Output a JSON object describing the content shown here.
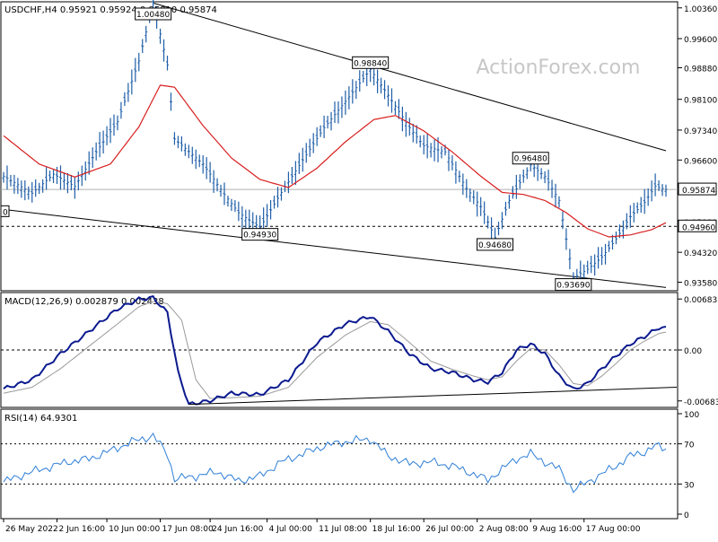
{
  "watermark": "ActionForex.com",
  "colors": {
    "price": "#1f5fa8",
    "ma": "#d81e1e",
    "macd": "#0b1a8f",
    "signal": "#9a9a9a",
    "rsi": "#2f7fd8",
    "trendline": "#000000",
    "frame": "#000000",
    "watermark": "#c7c7c7"
  },
  "chart_data": [
    {
      "type": "line",
      "panel": "price",
      "title": "USDCHF,H4  0.95921 0.95924 0.95810 0.95874",
      "y_ticks": [
        "1.00360",
        "0.99600",
        "0.98880",
        "0.98100",
        "0.97340",
        "0.96600",
        "0.95840",
        "0.95080",
        "0.94320",
        "0.93580"
      ],
      "ylim": [
        0.9337,
        1.0051
      ],
      "current_price": "0.95874",
      "support_level": "0.94960",
      "left_label": "0",
      "annotations": [
        {
          "label": "1.00480",
          "bar": 42,
          "value": 1.0048
        },
        {
          "label": "0.98840",
          "bar": 103,
          "value": 0.9884
        },
        {
          "label": "0.94930",
          "bar": 72,
          "value": 0.9493
        },
        {
          "label": "0.96480",
          "bar": 148,
          "value": 0.9648
        },
        {
          "label": "0.94680",
          "bar": 138,
          "value": 0.9468
        },
        {
          "label": "0.93690",
          "bar": 160,
          "value": 0.9369
        }
      ],
      "trendlines": [
        {
          "from": [
            42,
            1.0048
          ],
          "to": [
            186,
            0.9683
          ]
        },
        {
          "from": [
            0,
            0.9538
          ],
          "to": [
            186,
            0.9345
          ]
        }
      ],
      "bars_count": 187,
      "price_anchors": [
        [
          0,
          0.962
        ],
        [
          8,
          0.9578
        ],
        [
          14,
          0.9625
        ],
        [
          20,
          0.9595
        ],
        [
          26,
          0.968
        ],
        [
          32,
          0.9755
        ],
        [
          38,
          0.9905
        ],
        [
          42,
          1.0048
        ],
        [
          46,
          0.9895
        ],
        [
          48,
          0.9712
        ],
        [
          56,
          0.965
        ],
        [
          62,
          0.9575
        ],
        [
          66,
          0.953
        ],
        [
          72,
          0.9493
        ],
        [
          78,
          0.958
        ],
        [
          84,
          0.966
        ],
        [
          90,
          0.974
        ],
        [
          96,
          0.9805
        ],
        [
          103,
          0.9884
        ],
        [
          108,
          0.982
        ],
        [
          114,
          0.974
        ],
        [
          118,
          0.9695
        ],
        [
          124,
          0.968
        ],
        [
          130,
          0.959
        ],
        [
          134,
          0.9545
        ],
        [
          138,
          0.9468
        ],
        [
          142,
          0.956
        ],
        [
          148,
          0.9648
        ],
        [
          152,
          0.962
        ],
        [
          156,
          0.956
        ],
        [
          160,
          0.9369
        ],
        [
          164,
          0.939
        ],
        [
          168,
          0.942
        ],
        [
          172,
          0.9465
        ],
        [
          176,
          0.952
        ],
        [
          180,
          0.9555
        ],
        [
          183,
          0.9595
        ],
        [
          186,
          0.9587
        ]
      ],
      "ma_anchors": [
        [
          0,
          0.972
        ],
        [
          10,
          0.965
        ],
        [
          20,
          0.9618
        ],
        [
          30,
          0.965
        ],
        [
          38,
          0.9742
        ],
        [
          44,
          0.9845
        ],
        [
          48,
          0.984
        ],
        [
          56,
          0.9745
        ],
        [
          64,
          0.9665
        ],
        [
          72,
          0.9612
        ],
        [
          80,
          0.9592
        ],
        [
          88,
          0.964
        ],
        [
          96,
          0.9705
        ],
        [
          104,
          0.976
        ],
        [
          110,
          0.977
        ],
        [
          118,
          0.9732
        ],
        [
          126,
          0.968
        ],
        [
          134,
          0.962
        ],
        [
          140,
          0.958
        ],
        [
          146,
          0.9575
        ],
        [
          152,
          0.956
        ],
        [
          158,
          0.953
        ],
        [
          164,
          0.949
        ],
        [
          170,
          0.947
        ],
        [
          176,
          0.9475
        ],
        [
          182,
          0.9488
        ],
        [
          186,
          0.9505
        ]
      ]
    },
    {
      "type": "line",
      "panel": "macd",
      "title": "MACD(12,26,9) 0.002879 0.002438",
      "y_ticks": [
        "0.006832",
        "0.00",
        "-0.00683"
      ],
      "ylim": [
        -0.0077,
        0.0077
      ],
      "series_values": {
        "macd_anchors": [
          [
            0,
            -0.0052
          ],
          [
            8,
            -0.004
          ],
          [
            16,
            -0.0005
          ],
          [
            24,
            0.0025
          ],
          [
            32,
            0.0055
          ],
          [
            38,
            0.0068
          ],
          [
            42,
            0.007
          ],
          [
            46,
            0.005
          ],
          [
            49,
            -0.003
          ],
          [
            52,
            -0.0073
          ],
          [
            58,
            -0.0068
          ],
          [
            64,
            -0.0058
          ],
          [
            72,
            -0.006
          ],
          [
            80,
            -0.004
          ],
          [
            88,
            0.001
          ],
          [
            96,
            0.0035
          ],
          [
            103,
            0.0045
          ],
          [
            108,
            0.0025
          ],
          [
            114,
            -0.0005
          ],
          [
            120,
            -0.0025
          ],
          [
            126,
            -0.003
          ],
          [
            132,
            -0.004
          ],
          [
            136,
            -0.0043
          ],
          [
            140,
            -0.003
          ],
          [
            144,
            0.0
          ],
          [
            148,
            0.0008
          ],
          [
            152,
            -0.0005
          ],
          [
            156,
            -0.0035
          ],
          [
            160,
            -0.0053
          ],
          [
            164,
            -0.0045
          ],
          [
            168,
            -0.0025
          ],
          [
            172,
            -0.0008
          ],
          [
            176,
            0.0008
          ],
          [
            180,
            0.0018
          ],
          [
            184,
            0.003
          ],
          [
            186,
            0.0029
          ]
        ],
        "signal_anchors": [
          [
            0,
            -0.0058
          ],
          [
            8,
            -0.005
          ],
          [
            16,
            -0.0025
          ],
          [
            24,
            0.0005
          ],
          [
            32,
            0.0035
          ],
          [
            38,
            0.0058
          ],
          [
            42,
            0.0065
          ],
          [
            46,
            0.0062
          ],
          [
            50,
            0.004
          ],
          [
            54,
            -0.004
          ],
          [
            58,
            -0.0065
          ],
          [
            64,
            -0.0064
          ],
          [
            72,
            -0.0062
          ],
          [
            80,
            -0.005
          ],
          [
            88,
            -0.001
          ],
          [
            96,
            0.002
          ],
          [
            103,
            0.0038
          ],
          [
            108,
            0.0034
          ],
          [
            114,
            0.001
          ],
          [
            120,
            -0.0015
          ],
          [
            126,
            -0.0026
          ],
          [
            132,
            -0.0035
          ],
          [
            136,
            -0.004
          ],
          [
            140,
            -0.0036
          ],
          [
            144,
            -0.0015
          ],
          [
            148,
            0.0002
          ],
          [
            152,
            0.0
          ],
          [
            156,
            -0.002
          ],
          [
            160,
            -0.0045
          ],
          [
            164,
            -0.0048
          ],
          [
            168,
            -0.0035
          ],
          [
            172,
            -0.0018
          ],
          [
            176,
            0.0
          ],
          [
            180,
            0.0012
          ],
          [
            184,
            0.0022
          ],
          [
            186,
            0.0024
          ]
        ],
        "trendline": {
          "from": [
            52,
            -0.0073
          ],
          "to": [
            186,
            -0.005
          ]
        }
      }
    },
    {
      "type": "line",
      "panel": "rsi",
      "title": "RSI(14) 64.9301",
      "y_ticks": [
        "100",
        "70",
        "30",
        "0"
      ],
      "ylim": [
        0,
        100
      ],
      "levels": [
        70,
        30
      ],
      "rsi_anchors": [
        [
          0,
          32
        ],
        [
          6,
          40
        ],
        [
          12,
          46
        ],
        [
          18,
          52
        ],
        [
          24,
          55
        ],
        [
          30,
          63
        ],
        [
          36,
          72
        ],
        [
          42,
          78
        ],
        [
          46,
          60
        ],
        [
          48,
          35
        ],
        [
          54,
          38
        ],
        [
          60,
          42
        ],
        [
          66,
          33
        ],
        [
          72,
          38
        ],
        [
          78,
          52
        ],
        [
          84,
          60
        ],
        [
          90,
          68
        ],
        [
          96,
          72
        ],
        [
          103,
          75
        ],
        [
          108,
          58
        ],
        [
          114,
          50
        ],
        [
          120,
          52
        ],
        [
          126,
          48
        ],
        [
          132,
          40
        ],
        [
          136,
          34
        ],
        [
          140,
          45
        ],
        [
          144,
          55
        ],
        [
          148,
          60
        ],
        [
          152,
          52
        ],
        [
          156,
          45
        ],
        [
          160,
          24
        ],
        [
          164,
          32
        ],
        [
          168,
          40
        ],
        [
          172,
          48
        ],
        [
          176,
          58
        ],
        [
          180,
          62
        ],
        [
          183,
          68
        ],
        [
          186,
          65
        ]
      ]
    }
  ],
  "x_axis_labels": [
    {
      "label": "26 May 2022",
      "bar": 0
    },
    {
      "label": "2 Jun 16:00",
      "bar": 15
    },
    {
      "label": "10 Jun 00:00",
      "bar": 29
    },
    {
      "label": "17 Jun 08:00",
      "bar": 44
    },
    {
      "label": "24 Jun 16:00",
      "bar": 58
    },
    {
      "label": "4 Jul 00:00",
      "bar": 74
    },
    {
      "label": "11 Jul 08:00",
      "bar": 88
    },
    {
      "label": "18 Jul 16:00",
      "bar": 103
    },
    {
      "label": "26 Jul 00:00",
      "bar": 118
    },
    {
      "label": "2 Aug 08:00",
      "bar": 133
    },
    {
      "label": "9 Aug 16:00",
      "bar": 148
    },
    {
      "label": "17 Aug 00:00",
      "bar": 163
    }
  ]
}
